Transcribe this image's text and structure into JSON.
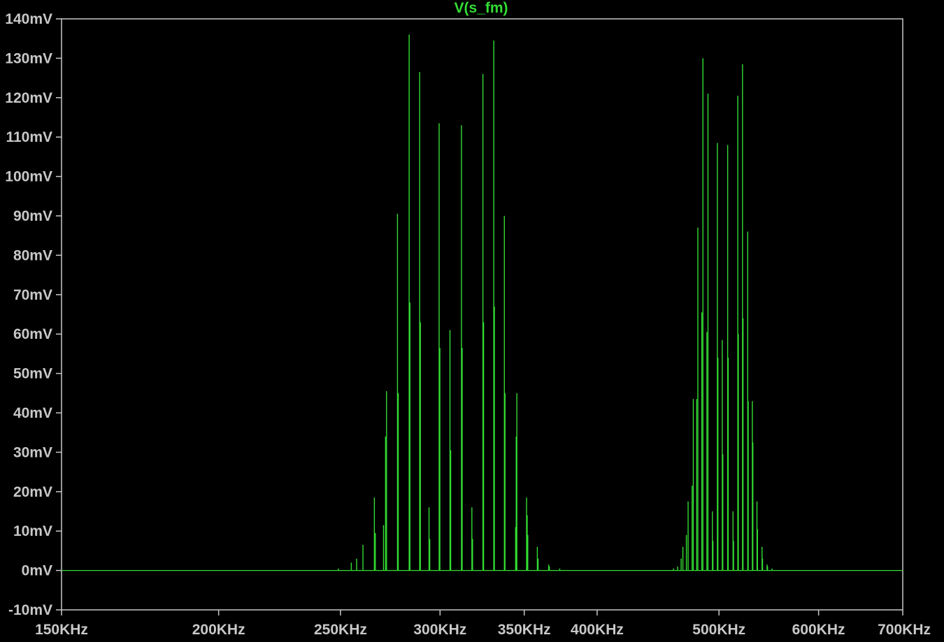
{
  "chart_data": {
    "type": "line",
    "title": "V(s_fm)",
    "xlabel": "",
    "ylabel": "",
    "x_scale": "log",
    "x_unit": "KHz",
    "y_unit": "mV",
    "xlim": [
      150,
      700
    ],
    "ylim": [
      -10,
      140
    ],
    "grid": false,
    "legend": "none",
    "colors": {
      "background": "#000000",
      "trace": "#33dd33",
      "axis": "#c8c8c8",
      "tick_label": "#c8c8c8",
      "title": "#33dd33"
    },
    "x_ticks": [
      {
        "value": 150,
        "label": "150KHz"
      },
      {
        "value": 200,
        "label": "200KHz"
      },
      {
        "value": 250,
        "label": "250KHz"
      },
      {
        "value": 300,
        "label": "300KHz"
      },
      {
        "value": 350,
        "label": "350KHz"
      },
      {
        "value": 400,
        "label": "400KHz"
      },
      {
        "value": 500,
        "label": "500KHz"
      },
      {
        "value": 600,
        "label": "600KHz"
      },
      {
        "value": 700,
        "label": "700KHz"
      }
    ],
    "y_ticks": [
      {
        "value": 140,
        "label": "140mV"
      },
      {
        "value": 130,
        "label": "130mV"
      },
      {
        "value": 120,
        "label": "120mV"
      },
      {
        "value": 110,
        "label": "110mV"
      },
      {
        "value": 100,
        "label": "100mV"
      },
      {
        "value": 90,
        "label": "90mV"
      },
      {
        "value": 80,
        "label": "80mV"
      },
      {
        "value": 70,
        "label": "70mV"
      },
      {
        "value": 60,
        "label": "60mV"
      },
      {
        "value": 50,
        "label": "50mV"
      },
      {
        "value": 40,
        "label": "40mV"
      },
      {
        "value": 30,
        "label": "30mV"
      },
      {
        "value": 20,
        "label": "20mV"
      },
      {
        "value": 10,
        "label": "10mV"
      },
      {
        "value": 0,
        "label": "0mV"
      },
      {
        "value": -10,
        "label": "-10mV"
      }
    ],
    "series": [
      {
        "name": "V(s_fm)",
        "baseline": 0,
        "peaks": [
          [
            249.0,
            0.5
          ],
          [
            255.0,
            2.0
          ],
          [
            257.5,
            3.0
          ],
          [
            260.5,
            6.5
          ],
          [
            266.0,
            18.5
          ],
          [
            266.5,
            9.5
          ],
          [
            270.5,
            11.5
          ],
          [
            271.5,
            34.0
          ],
          [
            272.0,
            45.5
          ],
          [
            277.5,
            90.5
          ],
          [
            277.9,
            45.0
          ],
          [
            283.5,
            136.0
          ],
          [
            283.9,
            68.0
          ],
          [
            289.0,
            126.5
          ],
          [
            289.4,
            63.0
          ],
          [
            294.0,
            16.0
          ],
          [
            294.4,
            8.0
          ],
          [
            299.5,
            113.5
          ],
          [
            299.9,
            56.5
          ],
          [
            305.5,
            61.0
          ],
          [
            305.9,
            30.5
          ],
          [
            312.0,
            113.0
          ],
          [
            312.4,
            56.5
          ],
          [
            318.0,
            16.0
          ],
          [
            318.4,
            8.0
          ],
          [
            324.5,
            126.0
          ],
          [
            324.9,
            63.0
          ],
          [
            331.0,
            134.5
          ],
          [
            331.4,
            67.0
          ],
          [
            337.5,
            90.0
          ],
          [
            337.9,
            45.0
          ],
          [
            344.5,
            11.0
          ],
          [
            344.9,
            34.0
          ],
          [
            345.3,
            45.0
          ],
          [
            351.5,
            18.5
          ],
          [
            351.9,
            14.0
          ],
          [
            352.3,
            9.0
          ],
          [
            358.5,
            6.0
          ],
          [
            359.0,
            3.0
          ],
          [
            366.0,
            1.5
          ],
          [
            366.5,
            1.0
          ],
          [
            373.5,
            0.5
          ],
          [
            460.0,
            0.5
          ],
          [
            463.5,
            1.0
          ],
          [
            466.5,
            3.0
          ],
          [
            468.0,
            6.0
          ],
          [
            471.0,
            9.0
          ],
          [
            472.5,
            17.5
          ],
          [
            476.0,
            21.5
          ],
          [
            477.0,
            43.5
          ],
          [
            480.0,
            43.5
          ],
          [
            481.0,
            87.0
          ],
          [
            484.5,
            65.5
          ],
          [
            485.5,
            130.0
          ],
          [
            489.0,
            60.5
          ],
          [
            490.0,
            121.0
          ],
          [
            494.0,
            15.0
          ],
          [
            494.5,
            7.5
          ],
          [
            498.5,
            108.5
          ],
          [
            499.0,
            54.0
          ],
          [
            503.0,
            58.5
          ],
          [
            503.5,
            29.5
          ],
          [
            508.0,
            108.0
          ],
          [
            508.5,
            54.0
          ],
          [
            513.0,
            15.0
          ],
          [
            513.5,
            7.5
          ],
          [
            517.5,
            120.5
          ],
          [
            518.0,
            60.0
          ],
          [
            522.0,
            128.5
          ],
          [
            522.5,
            64.0
          ],
          [
            527.0,
            86.0
          ],
          [
            527.5,
            43.0
          ],
          [
            531.5,
            43.0
          ],
          [
            532.0,
            32.5
          ],
          [
            536.0,
            17.5
          ],
          [
            536.5,
            10.5
          ],
          [
            541.0,
            6.0
          ],
          [
            541.5,
            3.0
          ],
          [
            546.0,
            1.5
          ],
          [
            546.5,
            1.0
          ],
          [
            551.0,
            0.5
          ]
        ]
      }
    ]
  }
}
